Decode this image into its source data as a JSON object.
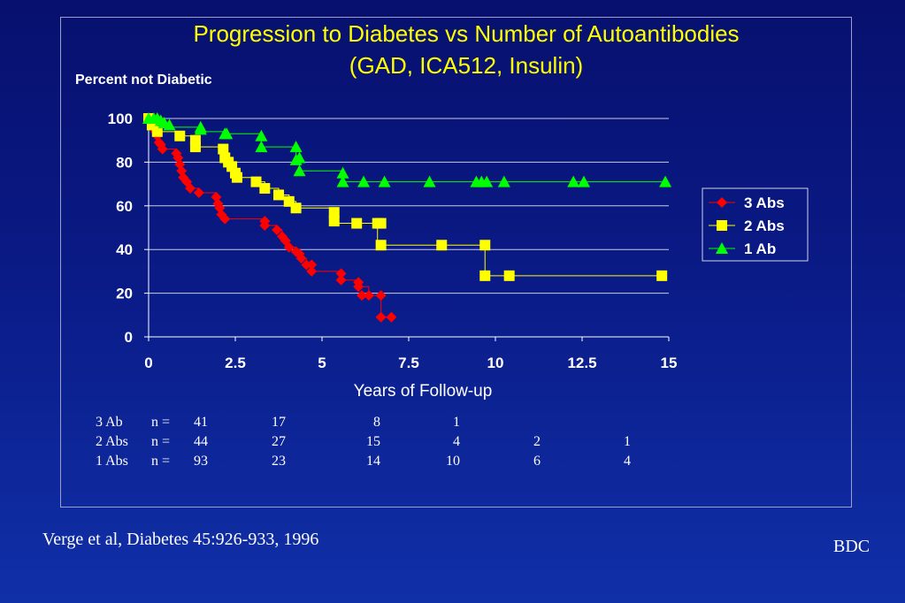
{
  "chart_data": {
    "type": "line",
    "title_lines": [
      "Progression to Diabetes vs Number of Autoantibodies",
      "(GAD, ICA512, Insulin)"
    ],
    "ylabel": "Percent not Diabetic",
    "xlabel": "Years of Follow-up",
    "xlim": [
      0,
      15
    ],
    "ylim": [
      0,
      100
    ],
    "x_ticks": [
      "0",
      "2.5",
      "5",
      "7.5",
      "10",
      "12.5",
      "15"
    ],
    "y_ticks": [
      "0",
      "20",
      "40",
      "60",
      "80",
      "100"
    ],
    "grid": "horizontal",
    "legend_position": "right",
    "series": [
      {
        "name": "3 Abs",
        "color": "#ff0000",
        "marker": "diamond",
        "step": [
          [
            0,
            100
          ],
          [
            0.1,
            97
          ],
          [
            0.2,
            94
          ],
          [
            0.25,
            92
          ],
          [
            0.3,
            89
          ],
          [
            0.4,
            86
          ],
          [
            0.8,
            84
          ],
          [
            0.85,
            82
          ],
          [
            0.9,
            79
          ],
          [
            0.95,
            76
          ],
          [
            1.0,
            73
          ],
          [
            1.1,
            71
          ],
          [
            1.2,
            68
          ],
          [
            1.45,
            66
          ],
          [
            1.95,
            64
          ],
          [
            2.0,
            61
          ],
          [
            2.05,
            59
          ],
          [
            2.1,
            56
          ],
          [
            2.2,
            54
          ],
          [
            3.35,
            51
          ],
          [
            3.7,
            49
          ],
          [
            3.85,
            46
          ],
          [
            3.95,
            44
          ],
          [
            4.05,
            41
          ],
          [
            4.25,
            39
          ],
          [
            4.4,
            36
          ],
          [
            4.55,
            33
          ],
          [
            4.7,
            30
          ],
          [
            5.55,
            26
          ],
          [
            6.05,
            23
          ],
          [
            6.35,
            19
          ],
          [
            6.7,
            9
          ]
        ],
        "end_x": 7.0,
        "markers": [
          [
            0,
            100
          ],
          [
            0.1,
            97
          ],
          [
            0.2,
            94
          ],
          [
            0.25,
            92
          ],
          [
            0.3,
            89
          ],
          [
            0.4,
            86
          ],
          [
            0.35,
            88
          ],
          [
            0.8,
            84
          ],
          [
            0.85,
            82
          ],
          [
            0.9,
            79
          ],
          [
            0.95,
            76
          ],
          [
            1.0,
            73
          ],
          [
            1.1,
            71
          ],
          [
            1.2,
            68
          ],
          [
            1.45,
            66
          ],
          [
            1.95,
            64
          ],
          [
            2.0,
            61
          ],
          [
            2.05,
            59
          ],
          [
            2.1,
            56
          ],
          [
            2.2,
            54
          ],
          [
            3.35,
            51
          ],
          [
            3.35,
            53
          ],
          [
            3.7,
            49
          ],
          [
            3.85,
            46
          ],
          [
            3.95,
            44
          ],
          [
            4.05,
            41
          ],
          [
            4.25,
            39
          ],
          [
            4.4,
            36
          ],
          [
            4.35,
            38
          ],
          [
            4.55,
            33
          ],
          [
            4.7,
            30
          ],
          [
            4.7,
            33
          ],
          [
            5.55,
            26
          ],
          [
            5.55,
            29
          ],
          [
            6.05,
            23
          ],
          [
            6.05,
            25
          ],
          [
            6.15,
            19
          ],
          [
            6.35,
            19
          ],
          [
            6.7,
            19
          ],
          [
            6.7,
            9
          ],
          [
            7.0,
            9
          ]
        ]
      },
      {
        "name": "2 Abs",
        "color": "#ffff00",
        "marker": "square",
        "step": [
          [
            0,
            100
          ],
          [
            0.1,
            97
          ],
          [
            0.25,
            94
          ],
          [
            0.9,
            92
          ],
          [
            1.35,
            90
          ],
          [
            1.35,
            87
          ],
          [
            2.15,
            84
          ],
          [
            2.2,
            82
          ],
          [
            2.3,
            80
          ],
          [
            2.4,
            78
          ],
          [
            2.5,
            75
          ],
          [
            2.55,
            73
          ],
          [
            3.1,
            71
          ],
          [
            3.35,
            68
          ],
          [
            3.75,
            65
          ],
          [
            4.05,
            62
          ],
          [
            4.25,
            59
          ],
          [
            5.35,
            56
          ],
          [
            5.35,
            52
          ],
          [
            6.6,
            42
          ],
          [
            9.7,
            28
          ]
        ],
        "end_x": 14.8,
        "markers": [
          [
            0,
            100
          ],
          [
            0.1,
            97
          ],
          [
            0.25,
            94
          ],
          [
            0.9,
            92
          ],
          [
            1.35,
            90
          ],
          [
            1.35,
            87
          ],
          [
            2.15,
            86
          ],
          [
            2.2,
            82
          ],
          [
            2.3,
            80
          ],
          [
            2.4,
            78
          ],
          [
            2.5,
            75
          ],
          [
            2.55,
            73
          ],
          [
            3.1,
            71
          ],
          [
            3.35,
            68
          ],
          [
            3.75,
            65
          ],
          [
            4.05,
            62
          ],
          [
            4.25,
            59
          ],
          [
            5.35,
            57
          ],
          [
            5.35,
            53
          ],
          [
            6.0,
            52
          ],
          [
            6.6,
            52
          ],
          [
            6.7,
            52
          ],
          [
            6.7,
            42
          ],
          [
            8.45,
            42
          ],
          [
            9.7,
            42
          ],
          [
            9.7,
            28
          ],
          [
            10.4,
            28
          ],
          [
            14.8,
            28
          ]
        ]
      },
      {
        "name": "1 Ab",
        "color": "#00ff00",
        "marker": "triangle",
        "step": [
          [
            0,
            100
          ],
          [
            0.25,
            99
          ],
          [
            0.45,
            97
          ],
          [
            0.6,
            96
          ],
          [
            1.5,
            94
          ],
          [
            2.25,
            93
          ],
          [
            3.25,
            87
          ],
          [
            4.25,
            81
          ],
          [
            4.35,
            76
          ],
          [
            5.6,
            71
          ]
        ],
        "end_x": 14.9,
        "markers": [
          [
            0,
            100
          ],
          [
            0.15,
            100
          ],
          [
            0.25,
            100
          ],
          [
            0.35,
            99
          ],
          [
            0.45,
            98
          ],
          [
            0.6,
            97
          ],
          [
            1.5,
            95
          ],
          [
            1.5,
            96
          ],
          [
            2.2,
            93
          ],
          [
            2.25,
            93
          ],
          [
            3.25,
            87
          ],
          [
            3.25,
            92
          ],
          [
            4.25,
            87
          ],
          [
            4.25,
            81
          ],
          [
            4.35,
            82
          ],
          [
            4.35,
            76
          ],
          [
            5.6,
            71
          ],
          [
            5.6,
            75
          ],
          [
            6.2,
            71
          ],
          [
            6.8,
            71
          ],
          [
            8.1,
            71
          ],
          [
            9.45,
            71
          ],
          [
            9.6,
            71
          ],
          [
            9.75,
            71
          ],
          [
            10.25,
            71
          ],
          [
            12.25,
            71
          ],
          [
            12.55,
            71
          ],
          [
            14.9,
            71
          ]
        ]
      }
    ],
    "risk_table": [
      [
        "3 Ab",
        "n =",
        "41",
        "17",
        "8",
        "1",
        "",
        ""
      ],
      [
        "2 Abs",
        "n =",
        "44",
        "27",
        "15",
        "4",
        "2",
        "1"
      ],
      [
        "1 Abs",
        "n =",
        "93",
        "23",
        "14",
        "10",
        "6",
        "4"
      ]
    ]
  },
  "footer": {
    "citation": "Verge et al, Diabetes 45:926-933, 1996",
    "org": "BDC"
  }
}
